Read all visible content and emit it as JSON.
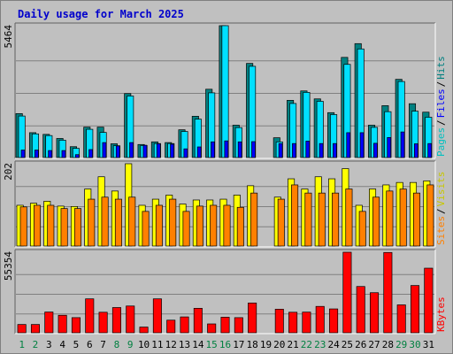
{
  "chart_data": {
    "type": "bar",
    "title": "Daily usage for March 2025",
    "categories": [
      "1",
      "2",
      "3",
      "4",
      "5",
      "6",
      "7",
      "8",
      "9",
      "10",
      "11",
      "12",
      "13",
      "14",
      "15",
      "16",
      "17",
      "18",
      "19",
      "20",
      "21",
      "22",
      "23",
      "24",
      "25",
      "26",
      "27",
      "28",
      "29",
      "30",
      "31"
    ],
    "weekend_days": [
      "1",
      "2",
      "8",
      "9",
      "15",
      "16",
      "22",
      "23",
      "29",
      "30"
    ],
    "panels": [
      {
        "name": "hits-files-pages",
        "max_label": "5464",
        "ylim": [
          0,
          5464
        ],
        "legend": [
          "Pages",
          "/",
          "Files",
          "/",
          "Hits"
        ],
        "series": [
          {
            "name": "Hits",
            "color": "#008080",
            "values": [
              1820,
              1030,
              960,
              790,
              450,
              1260,
              1260,
              570,
              2650,
              540,
              650,
              620,
              1150,
              1710,
              2830,
              5464,
              1340,
              3900,
              0,
              820,
              2370,
              2760,
              2430,
              1860,
              4150,
              4720,
              1340,
              2150,
              3240,
              2230,
              1880
            ]
          },
          {
            "name": "Files",
            "color": "#00e0ff",
            "values": [
              1720,
              980,
              910,
              720,
              380,
              1170,
              1040,
              490,
              2550,
              500,
              580,
              580,
              1080,
              1590,
              2680,
              5464,
              1240,
              3780,
              0,
              650,
              2240,
              2700,
              2330,
              1780,
              3860,
              4500,
              1250,
              1900,
              3150,
              1920,
              1670
            ]
          },
          {
            "name": "Pages",
            "color": "#0000ff",
            "values": [
              310,
              310,
              290,
              290,
              120,
              330,
              620,
              480,
              620,
              510,
              570,
              550,
              360,
              440,
              650,
              690,
              650,
              660,
              0,
              580,
              580,
              680,
              580,
              580,
              1030,
              1030,
              590,
              830,
              1060,
              570,
              580
            ]
          }
        ]
      },
      {
        "name": "visits-sites",
        "max_label": "202",
        "ylim": [
          0,
          202
        ],
        "legend": [
          "Sites",
          "/",
          "Visits"
        ],
        "series": [
          {
            "name": "Visits",
            "color": "#ffff00",
            "values": [
              100,
              105,
              110,
              98,
              97,
              140,
              170,
              135,
              202,
              100,
              115,
              125,
              103,
              113,
              113,
              115,
              125,
              148,
              0,
              120,
              165,
              140,
              170,
              165,
              190,
              100,
              140,
              150,
              156,
              156,
              160
            ]
          },
          {
            "name": "Sites",
            "color": "#ff8000",
            "values": [
              96,
              100,
              100,
              92,
              92,
              115,
              120,
              115,
              120,
              85,
              100,
              115,
              85,
              98,
              100,
              100,
              95,
              130,
              0,
              115,
              150,
              130,
              130,
              130,
              140,
              85,
              120,
              135,
              140,
              130,
              150
            ]
          }
        ]
      },
      {
        "name": "kbytes",
        "max_label": "55354",
        "ylim": [
          0,
          55354
        ],
        "legend": [
          "KBytes"
        ],
        "series": [
          {
            "name": "KBytes",
            "color": "#ff0000",
            "values": [
              5690,
              5690,
              14260,
              12030,
              10400,
              23310,
              14100,
              17340,
              18390,
              3920,
              23310,
              8660,
              10900,
              16820,
              6080,
              10700,
              10400,
              20460,
              0,
              16190,
              14100,
              14190,
              18120,
              16390,
              55354,
              31800,
              27540,
              55180,
              19180,
              32470,
              44390
            ]
          }
        ]
      }
    ]
  }
}
